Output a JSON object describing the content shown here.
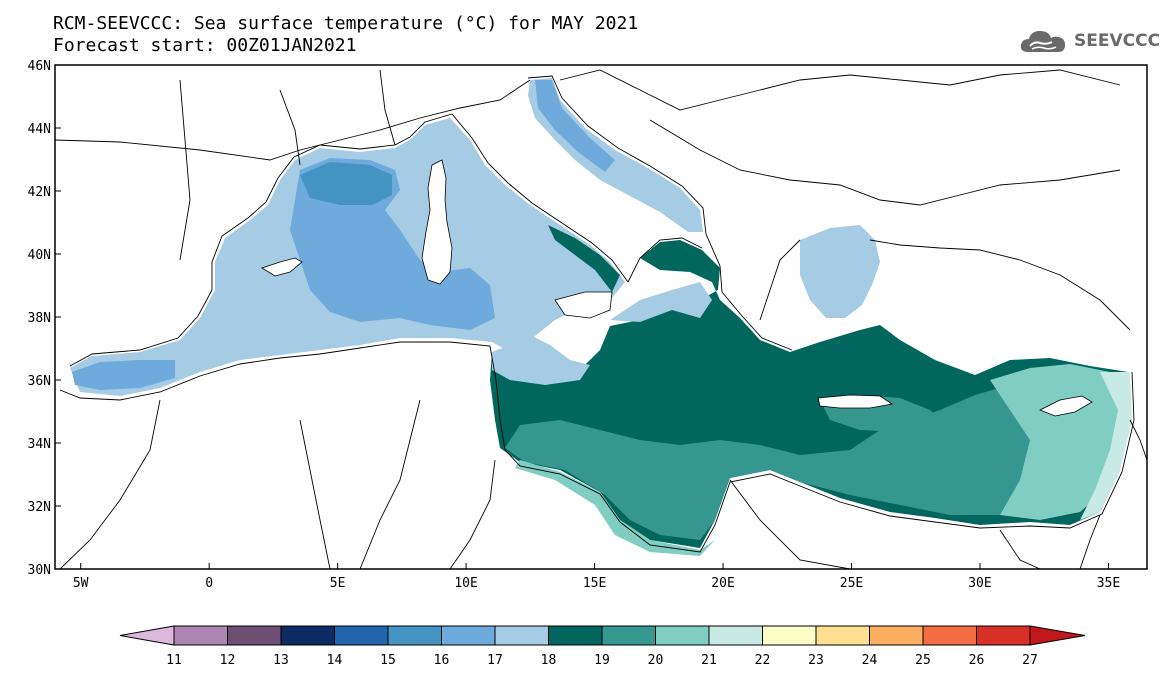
{
  "title": {
    "line1": "RCM-SEEVCCC: Sea surface temperature (°C) for MAY 2021",
    "line2": "Forecast start: 00Z01JAN2021"
  },
  "logo": {
    "text": "SEEVCCC",
    "icon": "cloud-icon"
  },
  "map": {
    "lat_labels": [
      "46N",
      "44N",
      "42N",
      "40N",
      "38N",
      "36N",
      "34N",
      "32N",
      "30N"
    ],
    "lon_labels": [
      "5W",
      "0",
      "5E",
      "10E",
      "15E",
      "20E",
      "25E",
      "30E",
      "35E"
    ],
    "extent": {
      "lon": [
        -6,
        36.5
      ],
      "lat": [
        30,
        46
      ]
    }
  },
  "colorbar": {
    "labels": [
      "11",
      "12",
      "13",
      "14",
      "15",
      "16",
      "17",
      "18",
      "19",
      "20",
      "21",
      "22",
      "23",
      "24",
      "25",
      "26",
      "27"
    ],
    "colors": [
      "#dcb9dc",
      "#ab86b5",
      "#6c4f73",
      "#0d2b63",
      "#2166ac",
      "#4393c3",
      "#6eaadc",
      "#a6cbe4",
      "#01665e",
      "#35978f",
      "#80cdc1",
      "#c7eae5",
      "#fdfdc8",
      "#fee090",
      "#fdae61",
      "#f46d43",
      "#d73027",
      "#c2171d"
    ]
  }
}
